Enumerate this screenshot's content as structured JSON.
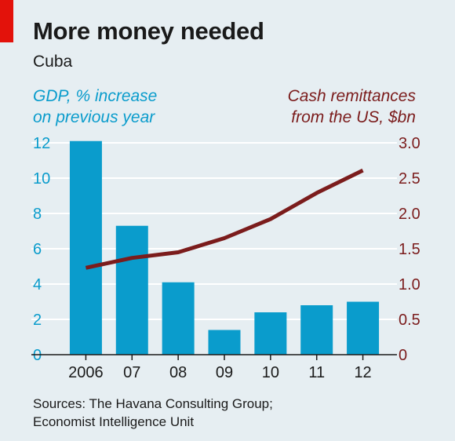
{
  "header": {
    "title": "More money needed",
    "subtitle": "Cuba"
  },
  "left_axis_title": [
    "GDP, % increase",
    "on previous year"
  ],
  "right_axis_title": [
    "Cash remittances",
    "from the US, $bn"
  ],
  "sources": [
    "Sources: The Havana Consulting Group;",
    "Economist Intelligence Unit"
  ],
  "colors": {
    "bars": "#0a9ccc",
    "line": "#7b1c1c",
    "background": "#e6eef2",
    "gridline": "#ffffff",
    "accent": "#e3120b"
  },
  "chart_data": {
    "type": "bar+line",
    "categories": [
      "2006",
      "07",
      "08",
      "09",
      "10",
      "11",
      "12"
    ],
    "series": [
      {
        "type": "bar",
        "axis": "left",
        "values": [
          12.1,
          7.3,
          4.1,
          1.4,
          2.4,
          2.8,
          3.0
        ]
      },
      {
        "type": "line",
        "axis": "right",
        "values": [
          1.23,
          1.37,
          1.45,
          1.65,
          1.92,
          2.29,
          2.61
        ]
      }
    ],
    "left_axis": {
      "ylim": [
        0,
        12
      ],
      "ticks": [
        "0",
        "2",
        "4",
        "6",
        "8",
        "10",
        "12"
      ]
    },
    "right_axis": {
      "ylim": [
        0,
        3
      ],
      "ticks": [
        "0",
        "0.5",
        "1.0",
        "1.5",
        "2.0",
        "2.5",
        "3.0"
      ]
    },
    "grid": true
  }
}
